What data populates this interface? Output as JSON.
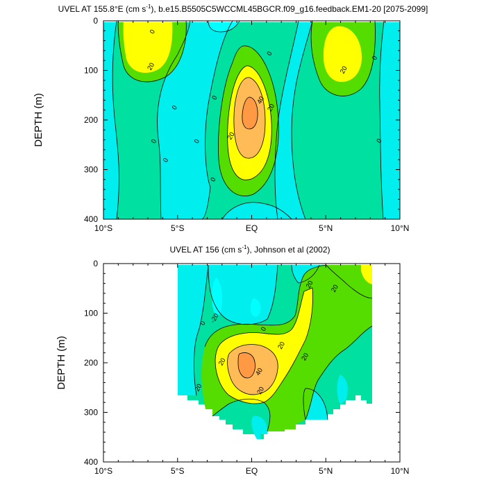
{
  "colors": {
    "level_minus20_0": "#00eeee",
    "level_0_20": "#00e0a0",
    "level_neg": "#00ffff",
    "level_20_40": "#55dd00",
    "level_40": "#ffff00",
    "level_60": "#ffbb55",
    "level_80": "#ff9944",
    "line": "#000000"
  },
  "chart_data": [
    {
      "type": "heatmap",
      "title_parts": [
        "UVEL AT 155.8°E (cm s",
        "-1",
        "), b.e15.B5505C5WCCML45BGCR.f09_g16.feedback.EM1-20 [2075-2099]"
      ],
      "ylabel": "DEPTH (m)",
      "xlabel": "",
      "xlim": [
        -10,
        10
      ],
      "ylim": [
        400,
        0
      ],
      "x_ticks": [
        {
          "value": -10,
          "label": "10°S"
        },
        {
          "value": -5,
          "label": "5°S"
        },
        {
          "value": 0,
          "label": "EQ"
        },
        {
          "value": 5,
          "label": "5°N"
        },
        {
          "value": 10,
          "label": "10°N"
        }
      ],
      "y_ticks": [
        {
          "value": 0,
          "label": "0"
        },
        {
          "value": 100,
          "label": "100"
        },
        {
          "value": 200,
          "label": "200"
        },
        {
          "value": 300,
          "label": "300"
        },
        {
          "value": 400,
          "label": "400"
        }
      ],
      "contour_levels": [
        -20,
        0,
        20,
        40,
        60
      ],
      "contour_labels": [
        {
          "x": -6.7,
          "y": 22,
          "text": "0"
        },
        {
          "x": -6.8,
          "y": 92,
          "text": "20"
        },
        {
          "x": -5.2,
          "y": 175,
          "text": "0"
        },
        {
          "x": -6.6,
          "y": 243,
          "text": "0"
        },
        {
          "x": -5.8,
          "y": 281,
          "text": "0"
        },
        {
          "x": -3.7,
          "y": 243,
          "text": "0"
        },
        {
          "x": -2.5,
          "y": 155,
          "text": "0"
        },
        {
          "x": -2.6,
          "y": 320,
          "text": "0"
        },
        {
          "x": 1.2,
          "y": 66,
          "text": "0"
        },
        {
          "x": 0.6,
          "y": 160,
          "text": "40"
        },
        {
          "x": 1.3,
          "y": 175,
          "text": "20"
        },
        {
          "x": -1.4,
          "y": 232,
          "text": "20"
        },
        {
          "x": 6.2,
          "y": 99,
          "text": "20"
        },
        {
          "x": 8.3,
          "y": 75,
          "text": "0"
        },
        {
          "x": 8.6,
          "y": 242,
          "text": "0"
        }
      ]
    },
    {
      "type": "heatmap",
      "title_parts": [
        "UVEL AT 156 (cm s",
        "-1",
        "), Johnson et al (2002)"
      ],
      "ylabel": "DEPTH (m)",
      "xlabel": "",
      "xlim": [
        -10,
        10
      ],
      "ylim": [
        400,
        0
      ],
      "x_ticks": [
        {
          "value": -10,
          "label": "10°S"
        },
        {
          "value": -5,
          "label": "5°S"
        },
        {
          "value": 0,
          "label": "EQ"
        },
        {
          "value": 5,
          "label": "5°N"
        },
        {
          "value": 10,
          "label": "10°N"
        }
      ],
      "y_ticks": [
        {
          "value": 0,
          "label": "0"
        },
        {
          "value": 100,
          "label": "100"
        },
        {
          "value": 200,
          "label": "200"
        },
        {
          "value": 300,
          "label": "300"
        },
        {
          "value": 400,
          "label": "400"
        }
      ],
      "contour_levels": [
        -20,
        0,
        20,
        40
      ],
      "contour_labels": [
        {
          "x": 3.9,
          "y": 42,
          "text": "20"
        },
        {
          "x": 5.6,
          "y": 50,
          "text": "20"
        },
        {
          "x": -2.5,
          "y": 110,
          "text": "-20"
        },
        {
          "x": -3.3,
          "y": 120,
          "text": "0"
        },
        {
          "x": 0.8,
          "y": 132,
          "text": "0"
        },
        {
          "x": 2.0,
          "y": 165,
          "text": "20"
        },
        {
          "x": -2.0,
          "y": 198,
          "text": "20"
        },
        {
          "x": 0.5,
          "y": 218,
          "text": "40"
        },
        {
          "x": 3.6,
          "y": 188,
          "text": "20"
        },
        {
          "x": -3.6,
          "y": 250,
          "text": "20"
        },
        {
          "x": 0.6,
          "y": 256,
          "text": "20"
        }
      ]
    }
  ]
}
